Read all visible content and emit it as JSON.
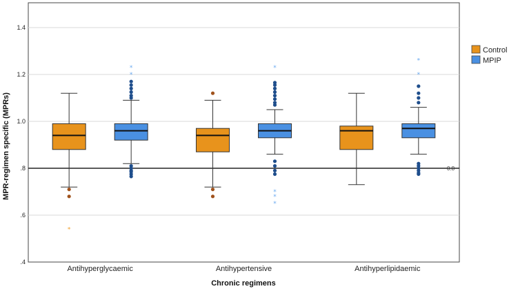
{
  "chart_data": {
    "type": "box",
    "xlabel": "Chronic regimens",
    "ylabel": "MPR-regimen specific (MPRs)",
    "ylim": [
      0.4,
      1.5
    ],
    "yticks": [
      0.4,
      0.6,
      0.8,
      1.0,
      1.2,
      1.4
    ],
    "ytick_labels": [
      ".4",
      ".6",
      ".8",
      "1.0",
      "1.2",
      "1.4"
    ],
    "grid": "horizontal",
    "legend_position": "right",
    "reference_line": {
      "value": 0.8,
      "label": "0.8"
    },
    "categories": [
      "Antihyperglycaemic",
      "Antihypertensive",
      "Antihyperlipidaemic"
    ],
    "series": [
      {
        "name": "Control",
        "color": "#e8931c",
        "outlier_color": "#a0521c",
        "extreme_color": "#f0a030",
        "boxes": [
          {
            "whisker_low": 0.72,
            "q1": 0.88,
            "median": 0.94,
            "q3": 0.99,
            "whisker_high": 1.12,
            "outliers": [
              0.71,
              0.68
            ],
            "extremes": [
              0.54
            ]
          },
          {
            "whisker_low": 0.72,
            "q1": 0.87,
            "median": 0.94,
            "q3": 0.97,
            "whisker_high": 1.09,
            "outliers": [
              0.71,
              0.68,
              1.12
            ],
            "extremes": []
          },
          {
            "whisker_low": 0.73,
            "q1": 0.88,
            "median": 0.96,
            "q3": 0.98,
            "whisker_high": 1.12,
            "outliers": [],
            "extremes": []
          }
        ]
      },
      {
        "name": "MPIP",
        "color": "#4a90e2",
        "outlier_color": "#1f4e8c",
        "extreme_color": "#6aaaf0",
        "boxes": [
          {
            "whisker_low": 0.82,
            "q1": 0.92,
            "median": 0.96,
            "q3": 0.99,
            "whisker_high": 1.09,
            "outliers": [
              0.81,
              0.8,
              0.79,
              0.785,
              0.775,
              0.765,
              1.1,
              1.11,
              1.125,
              1.14,
              1.155,
              1.17
            ],
            "extremes": [
              1.2,
              1.23
            ]
          },
          {
            "whisker_low": 0.86,
            "q1": 0.93,
            "median": 0.96,
            "q3": 0.99,
            "whisker_high": 1.05,
            "outliers": [
              0.83,
              0.81,
              0.79,
              0.775,
              1.07,
              1.08,
              1.095,
              1.11,
              1.125,
              1.14,
              1.155,
              1.165
            ],
            "extremes": [
              0.7,
              0.68,
              0.65,
              1.23
            ]
          },
          {
            "whisker_low": 0.86,
            "q1": 0.93,
            "median": 0.97,
            "q3": 0.99,
            "whisker_high": 1.06,
            "outliers": [
              0.82,
              0.81,
              0.8,
              0.79,
              0.78,
              0.775,
              1.08,
              1.1,
              1.12,
              1.15
            ],
            "extremes": [
              1.2,
              1.26
            ]
          }
        ]
      }
    ]
  }
}
